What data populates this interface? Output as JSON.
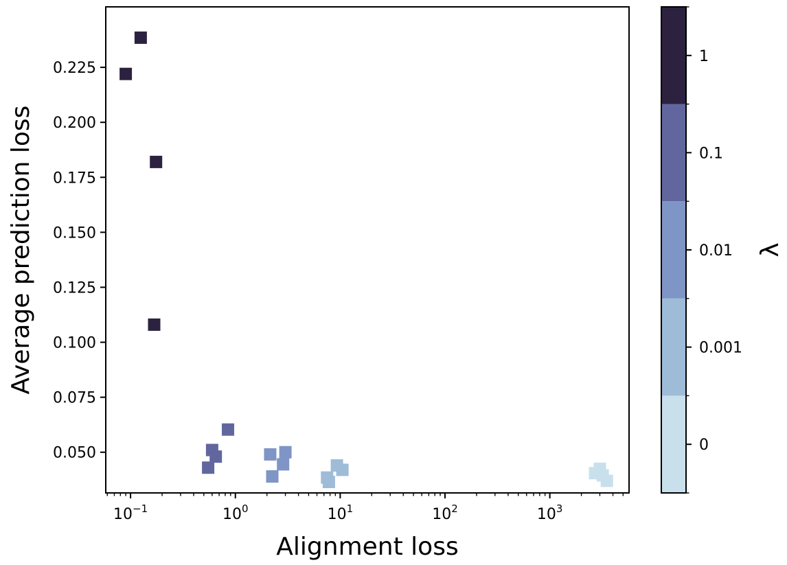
{
  "chart_data": {
    "type": "scatter",
    "title": "",
    "xlabel": "Alignment loss",
    "ylabel": "Average prediction loss",
    "xscale": "log",
    "xlim": [
      0.058,
      5700
    ],
    "ylim": [
      0.0315,
      0.2525
    ],
    "x_ticks": [
      {
        "value": 0.1,
        "base": "10",
        "exp": "−1"
      },
      {
        "value": 1,
        "base": "10",
        "exp": "0"
      },
      {
        "value": 10,
        "base": "10",
        "exp": "1"
      },
      {
        "value": 100,
        "base": "10",
        "exp": "2"
      },
      {
        "value": 1000,
        "base": "10",
        "exp": "3"
      }
    ],
    "y_ticks": [
      {
        "value": 0.05,
        "label": "0.050"
      },
      {
        "value": 0.075,
        "label": "0.075"
      },
      {
        "value": 0.1,
        "label": "0.100"
      },
      {
        "value": 0.125,
        "label": "0.125"
      },
      {
        "value": 0.15,
        "label": "0.150"
      },
      {
        "value": 0.175,
        "label": "0.175"
      },
      {
        "value": 0.2,
        "label": "0.200"
      },
      {
        "value": 0.225,
        "label": "0.225"
      }
    ],
    "grid": false,
    "marker": "square",
    "colorbar": {
      "label": "λ",
      "levels": [
        {
          "label": "0",
          "color": "#c8e0ec"
        },
        {
          "label": "0.001",
          "color": "#9ebcd8"
        },
        {
          "label": "0.01",
          "color": "#7f95c5"
        },
        {
          "label": "0.1",
          "color": "#61679e"
        },
        {
          "label": "1",
          "color": "#2c2240"
        }
      ]
    },
    "series": [
      {
        "lambda": "1",
        "points": [
          [
            0.09,
            0.222
          ],
          [
            0.125,
            0.2385
          ],
          [
            0.175,
            0.182
          ],
          [
            0.168,
            0.108
          ]
        ]
      },
      {
        "lambda": "0.1",
        "points": [
          [
            0.55,
            0.043
          ],
          [
            0.6,
            0.051
          ],
          [
            0.65,
            0.048
          ],
          [
            0.85,
            0.0603
          ]
        ]
      },
      {
        "lambda": "0.01",
        "points": [
          [
            2.15,
            0.049
          ],
          [
            2.25,
            0.039
          ],
          [
            2.85,
            0.0445
          ],
          [
            3.0,
            0.05
          ]
        ]
      },
      {
        "lambda": "0.001",
        "points": [
          [
            7.5,
            0.0385
          ],
          [
            7.8,
            0.0365
          ],
          [
            9.3,
            0.044
          ],
          [
            10.5,
            0.042
          ]
        ]
      },
      {
        "lambda": "0",
        "points": [
          [
            2700,
            0.0405
          ],
          [
            3000,
            0.0425
          ],
          [
            3200,
            0.0395
          ],
          [
            3500,
            0.037
          ]
        ]
      }
    ]
  }
}
